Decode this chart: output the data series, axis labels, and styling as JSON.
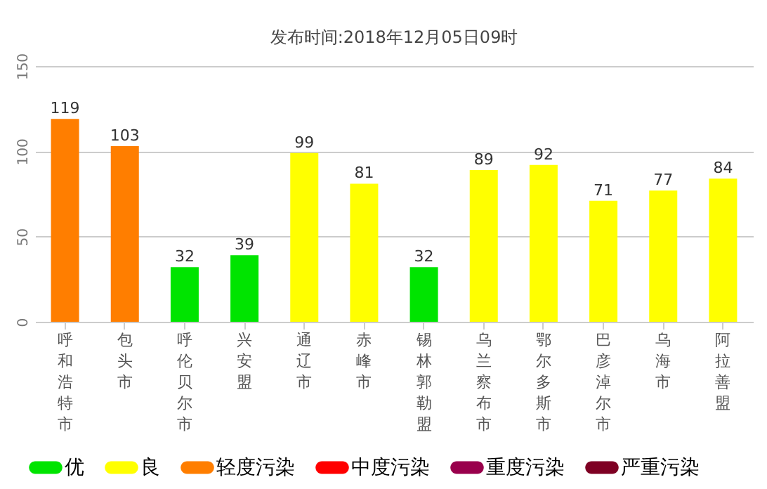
{
  "chart_data": {
    "type": "bar",
    "title": "发布时间:2018年12月05日09时",
    "categories": [
      "呼和浩特市",
      "包头市",
      "呼伦贝尔市",
      "兴安盟",
      "通辽市",
      "赤峰市",
      "锡林郭勒盟",
      "乌兰察布市",
      "鄂尔多斯市",
      "巴彦淖尔市",
      "乌海市",
      "阿拉善盟"
    ],
    "series": [
      {
        "name": "优",
        "color": "#00e400",
        "values": [
          null,
          null,
          32,
          39,
          null,
          null,
          32,
          null,
          null,
          null,
          null,
          null
        ]
      },
      {
        "name": "良",
        "color": "#ffff00",
        "values": [
          null,
          null,
          null,
          null,
          99,
          81,
          null,
          89,
          92,
          71,
          77,
          84
        ]
      },
      {
        "name": "轻度污染",
        "color": "#ff7e00",
        "values": [
          119,
          103,
          null,
          null,
          null,
          null,
          null,
          null,
          null,
          null,
          null,
          null
        ]
      },
      {
        "name": "中度污染",
        "color": "#ff0000",
        "values": [
          null,
          null,
          null,
          null,
          null,
          null,
          null,
          null,
          null,
          null,
          null,
          null
        ]
      },
      {
        "name": "重度污染",
        "color": "#99004c",
        "values": [
          null,
          null,
          null,
          null,
          null,
          null,
          null,
          null,
          null,
          null,
          null,
          null
        ]
      },
      {
        "name": "严重污染",
        "color": "#7e0023",
        "values": [
          null,
          null,
          null,
          null,
          null,
          null,
          null,
          null,
          null,
          null,
          null,
          null
        ]
      }
    ],
    "ylim": [
      0,
      150
    ],
    "yticks": [
      0,
      50,
      100,
      150
    ],
    "grid": "y",
    "data_labels": true,
    "legend": "bottom"
  }
}
